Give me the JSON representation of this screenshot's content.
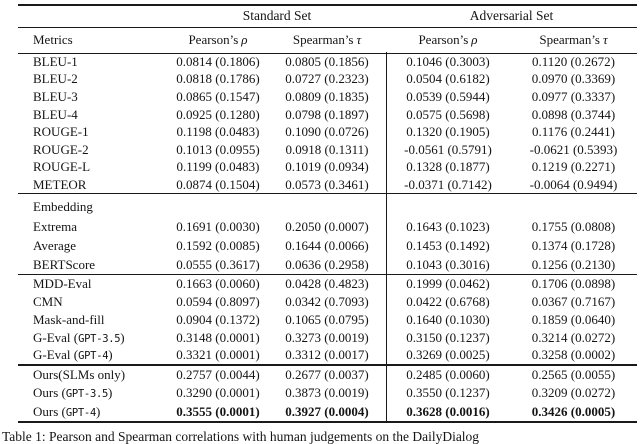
{
  "table": {
    "group_headers": [
      {
        "label": "Standard Set"
      },
      {
        "label": "Adversarial Set"
      }
    ],
    "columns": [
      {
        "label": "Metrics",
        "symbol": ""
      },
      {
        "label": "Pearson’s",
        "symbol": "ρ"
      },
      {
        "label": "Spearman’s",
        "symbol": "τ"
      },
      {
        "label": "Pearson’s",
        "symbol": "ρ"
      },
      {
        "label": "Spearman’s",
        "symbol": "τ"
      }
    ],
    "sections": [
      {
        "rows": [
          {
            "metric": {
              "text": "BLEU-1"
            },
            "values": [
              "0.0814 (0.1806)",
              "0.0805 (0.1856)",
              "0.1046 (0.3003)",
              "0.1120 (0.2672)"
            ]
          },
          {
            "metric": {
              "text": "BLEU-2"
            },
            "values": [
              "0.0818 (0.1786)",
              "0.0727 (0.2323)",
              "0.0504 (0.6182)",
              "0.0970 (0.3369)"
            ]
          },
          {
            "metric": {
              "text": "BLEU-3"
            },
            "values": [
              "0.0865 (0.1547)",
              "0.0809 (0.1835)",
              "0.0539 (0.5944)",
              "0.0977 (0.3337)"
            ]
          },
          {
            "metric": {
              "text": "BLEU-4"
            },
            "values": [
              "0.0925 (0.1280)",
              "0.0798 (0.1897)",
              "0.0575 (0.5698)",
              "0.0898 (0.3744)"
            ]
          },
          {
            "metric": {
              "text": "ROUGE-1"
            },
            "values": [
              "0.1198 (0.0483)",
              "0.1090 (0.0726)",
              "0.1320 (0.1905)",
              "0.1176 (0.2441)"
            ]
          },
          {
            "metric": {
              "text": "ROUGE-2"
            },
            "values": [
              "0.1013 (0.0955)",
              "0.0918 (0.1311)",
              "-0.0561 (0.5791)",
              "-0.0621 (0.5393)"
            ]
          },
          {
            "metric": {
              "text": "ROUGE-L"
            },
            "values": [
              "0.1199 (0.0483)",
              "0.1019 (0.0934)",
              "0.1328 (0.1877)",
              "0.1219 (0.2271)"
            ]
          },
          {
            "metric": {
              "text": "METEOR"
            },
            "values": [
              "0.0874 (0.1504)",
              "0.0573 (0.3461)",
              "-0.0371 (0.7142)",
              "-0.0064 (0.9494)"
            ]
          }
        ]
      },
      {
        "rows": [
          {
            "metric": {
              "text": "Embedding"
            },
            "values": [
              "",
              "",
              "",
              ""
            ]
          },
          {
            "metric": {
              "text": "Extrema"
            },
            "values": [
              "0.1691 (0.0030)",
              "0.2050 (0.0007)",
              "0.1643 (0.1023)",
              "0.1755 (0.0808)"
            ]
          },
          {
            "metric": {
              "text": "Average"
            },
            "values": [
              "0.1592 (0.0085)",
              "0.1644 (0.0066)",
              "0.1453 (0.1492)",
              "0.1374 (0.1728)"
            ]
          },
          {
            "metric": {
              "text": "BERTScore"
            },
            "values": [
              "0.0555 (0.3617)",
              "0.0636 (0.2958)",
              "0.1043 (0.3016)",
              "0.1256 (0.2130)"
            ]
          }
        ]
      },
      {
        "rows": [
          {
            "metric": {
              "text": "MDD-Eval"
            },
            "values": [
              "0.1663 (0.0060)",
              "0.0428 (0.4823)",
              "0.1999 (0.0462)",
              "0.1706 (0.0898)"
            ]
          },
          {
            "metric": {
              "text": "CMN"
            },
            "values": [
              "0.0594 (0.8097)",
              "0.0342 (0.7093)",
              "0.0422 (0.6768)",
              "0.0367 (0.7167)"
            ]
          },
          {
            "metric": {
              "text": "Mask-and-fill"
            },
            "values": [
              "0.0904 (0.1372)",
              "0.1065 (0.0795)",
              "0.1640 (0.1030)",
              "0.1859 (0.0640)"
            ]
          },
          {
            "metric": {
              "text": "G-Eval (",
              "mono": "GPT-3.5",
              "suffix": ")"
            },
            "values": [
              "0.3148 (0.0001)",
              "0.3273 (0.0019)",
              "0.3150 (0.1237)",
              "0.3214 (0.0272)"
            ]
          },
          {
            "metric": {
              "text": "G-Eval (",
              "mono": "GPT-4",
              "suffix": ")"
            },
            "values": [
              "0.3321 (0.0001)",
              "0.3312 (0.0017)",
              "0.3269 (0.0025)",
              "0.3258 (0.0002)"
            ]
          }
        ]
      },
      {
        "rows": [
          {
            "metric": {
              "text": "Ours(SLMs only)"
            },
            "values": [
              "0.2757 (0.0044)",
              "0.2677 (0.0037)",
              "0.2485 (0.0060)",
              "0.2565 (0.0055)"
            ]
          },
          {
            "metric": {
              "text": "Ours (",
              "mono": "GPT-3.5",
              "suffix": ")"
            },
            "values": [
              "0.3290 (0.0001)",
              "0.3873 (0.0019)",
              "0.3550 (0.1237)",
              "0.3209 (0.0272)"
            ]
          },
          {
            "metric": {
              "text": "Ours (",
              "mono": "GPT-4",
              "suffix": ")"
            },
            "bold_values": true,
            "values": [
              "0.3555 (0.0001)",
              "0.3927 (0.0004)",
              "0.3628 (0.0016)",
              "0.3426 (0.0005)"
            ]
          }
        ]
      }
    ]
  },
  "caption": "Table 1: Pearson and Spearman correlations with human judgements on the DailyDialog"
}
